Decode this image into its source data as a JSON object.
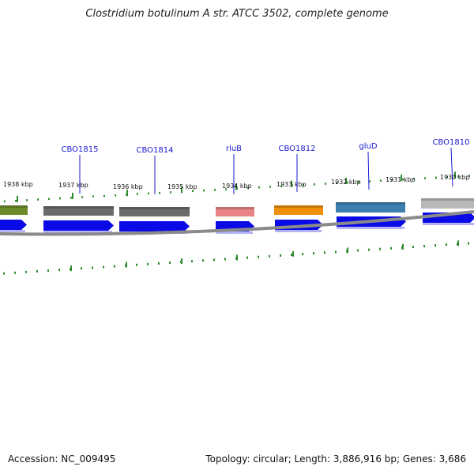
{
  "title": "Clostridium botulinum A str. ATCC 3502, complete genome",
  "footer": {
    "accession": "Accession: NC_009495",
    "summary": "Topology: circular; Length: 3,886,916 bp; Genes: 3,686"
  },
  "colors": {
    "background": "#ffffff",
    "backbone": "#8a8a8a",
    "tick": "#2e8b2e",
    "cds_arrow": "#0a0ae6",
    "label": "#1a1ad0"
  },
  "ticks": [
    {
      "label": "1938 kbp"
    },
    {
      "label": "1937 kbp"
    },
    {
      "label": "1936 kbp"
    },
    {
      "label": "1935 kbp"
    },
    {
      "label": "1934 kbp"
    },
    {
      "label": "1933 kbp"
    },
    {
      "label": "1932 kbp"
    },
    {
      "label": "1931 kbp"
    },
    {
      "label": "1930 kbp"
    }
  ],
  "genes": [
    {
      "name": "",
      "color": "#6e8b2a"
    },
    {
      "name": "CBO1815",
      "color": "#6b6b6b"
    },
    {
      "name": "CBO1814",
      "color": "#6b6b6b"
    },
    {
      "name": "rluB",
      "color": "#e98587"
    },
    {
      "name": "CBO1812",
      "color": "#f0900a"
    },
    {
      "name": "gluD",
      "color": "#3e7fb0"
    },
    {
      "name": "CBO1810",
      "color": "#b8b8b8"
    }
  ]
}
